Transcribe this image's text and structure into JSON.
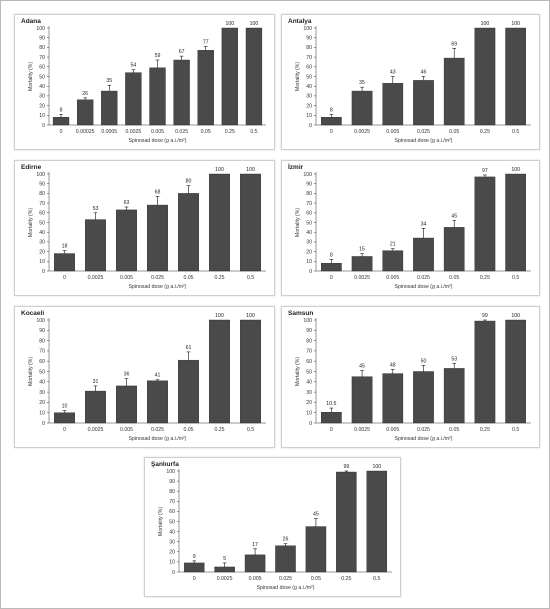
{
  "colors": {
    "frame_bg": "#ffffff",
    "panel_bg": "#ffffff",
    "bar": "#4a4a4a",
    "text": "#222222"
  },
  "chart_data": [
    {
      "type": "bar",
      "title": "Adana",
      "xlabel": "Spinosad dose (g a.i./m²)",
      "ylabel": "Mortality (%)",
      "ylim": [
        0,
        100
      ],
      "yticks": [
        0,
        10,
        20,
        30,
        40,
        50,
        60,
        70,
        80,
        90,
        100
      ],
      "categories": [
        "0",
        "0.00025",
        "0.0005",
        "0.0025",
        "0.005",
        "0.025",
        "0.05",
        "0.25",
        "0.5"
      ],
      "values": [
        8,
        26,
        35,
        54,
        59,
        67,
        77,
        100,
        100
      ],
      "labels": [
        "8",
        "26",
        "35",
        "54",
        "59",
        "67",
        "77",
        "100",
        "100"
      ],
      "errors": [
        3,
        2,
        6,
        3,
        8,
        4,
        4,
        0,
        0
      ]
    },
    {
      "type": "bar",
      "title": "Antalya",
      "xlabel": "Spinosad dose (g a.i./m²)",
      "ylabel": "Mortality (%)",
      "ylim": [
        0,
        100
      ],
      "yticks": [
        0,
        10,
        20,
        30,
        40,
        50,
        60,
        70,
        80,
        90,
        100
      ],
      "categories": [
        "0",
        "0.0025",
        "0.005",
        "0.025",
        "0.05",
        "0.25",
        "0.5"
      ],
      "values": [
        8,
        35,
        43,
        46,
        69,
        100,
        100
      ],
      "labels": [
        "8",
        "35",
        "43",
        "46",
        "69",
        "100",
        "100"
      ],
      "errors": [
        3,
        4,
        7,
        4,
        10,
        0,
        0
      ]
    },
    {
      "type": "bar",
      "title": "Edirne",
      "xlabel": "Spinosad dose (g a.i./m²)",
      "ylabel": "Mortality (%)",
      "ylim": [
        0,
        100
      ],
      "yticks": [
        0,
        10,
        20,
        30,
        40,
        50,
        60,
        70,
        80,
        90,
        100
      ],
      "categories": [
        "0",
        "0.0025",
        "0.005",
        "0.025",
        "0.05",
        "0.25",
        "0.5"
      ],
      "values": [
        18,
        53,
        63,
        68,
        80,
        100,
        100
      ],
      "labels": [
        "18",
        "53",
        "63",
        "68",
        "80",
        "100",
        "100"
      ],
      "errors": [
        3,
        7,
        3,
        9,
        8,
        0,
        0
      ]
    },
    {
      "type": "bar",
      "title": "İzmir",
      "xlabel": "Spinosad dose (g a.i./m²)",
      "ylabel": "Mortality (%)",
      "ylim": [
        0,
        100
      ],
      "yticks": [
        0,
        10,
        20,
        30,
        40,
        50,
        60,
        70,
        80,
        90,
        100
      ],
      "categories": [
        "0",
        "0.0025",
        "0.005",
        "0.025",
        "0.05",
        "0.25",
        "0.5"
      ],
      "values": [
        8,
        15,
        21,
        34,
        45,
        97,
        100
      ],
      "labels": [
        "8",
        "15",
        "21",
        "34",
        "45",
        "97",
        "100"
      ],
      "errors": [
        4,
        3,
        2,
        10,
        7,
        2,
        0
      ]
    },
    {
      "type": "bar",
      "title": "Kocaeli",
      "xlabel": "Spinosad dose (g a.i./m²)",
      "ylabel": "Mortality (%)",
      "ylim": [
        0,
        100
      ],
      "yticks": [
        0,
        10,
        20,
        30,
        40,
        50,
        60,
        70,
        80,
        90,
        100
      ],
      "categories": [
        "0",
        "0.0025",
        "0.005",
        "0.025",
        "0.05",
        "0.25",
        "0.5"
      ],
      "values": [
        10,
        31,
        36,
        41,
        61,
        100,
        100
      ],
      "labels": [
        "10",
        "31",
        "36",
        "41",
        "61",
        "100",
        "100"
      ],
      "errors": [
        2,
        5,
        7,
        1,
        8,
        0,
        0
      ]
    },
    {
      "type": "bar",
      "title": "Samsun",
      "xlabel": "Spinosad dose (g a.i./m²)",
      "ylabel": "Mortality (%)",
      "ylim": [
        0,
        100
      ],
      "yticks": [
        0,
        10,
        20,
        30,
        40,
        50,
        60,
        70,
        80,
        90,
        100
      ],
      "categories": [
        "0",
        "0.0025",
        "0.005",
        "0.025",
        "0.05",
        "0.25",
        "0.5"
      ],
      "values": [
        10.5,
        45,
        48,
        50,
        53,
        99,
        100
      ],
      "labels": [
        "10.5",
        "45",
        "48",
        "50",
        "53",
        "99",
        "100"
      ],
      "errors": [
        4,
        6,
        4,
        6,
        5,
        1,
        0
      ]
    },
    {
      "type": "bar",
      "title": "Şanlıurfa",
      "xlabel": "Spinosad dose (g a.i./m²)",
      "ylabel": "Mortality (%)",
      "ylim": [
        0,
        100
      ],
      "yticks": [
        0,
        10,
        20,
        30,
        40,
        50,
        60,
        70,
        80,
        90,
        100
      ],
      "categories": [
        "0",
        "0.0025",
        "0.005",
        "0.025",
        "0.05",
        "0.25",
        "0.5"
      ],
      "values": [
        9,
        5,
        17,
        26,
        45,
        99,
        100
      ],
      "labels": [
        "9",
        "5",
        "17",
        "26",
        "45",
        "99",
        "100"
      ],
      "errors": [
        2,
        4,
        6,
        2,
        8,
        1,
        0
      ]
    }
  ]
}
